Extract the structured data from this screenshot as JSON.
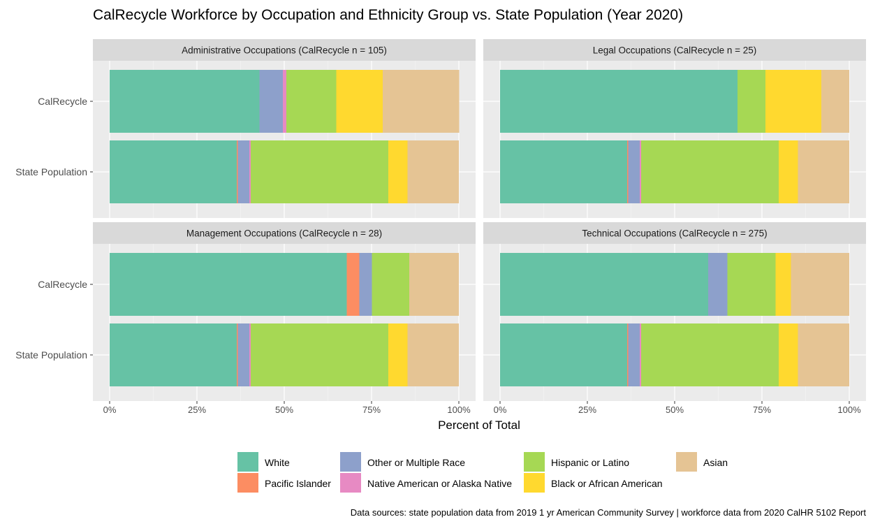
{
  "chart_data": {
    "type": "bar",
    "orientation": "horizontal",
    "stacked": true,
    "title": "CalRecycle Workforce by Occupation and Ethnicity Group vs. State Population (Year 2020)",
    "xlabel": "Percent of Total",
    "xlim": [
      0,
      100
    ],
    "x_ticks": [
      "0%",
      "25%",
      "50%",
      "75%",
      "100%"
    ],
    "x_tick_values": [
      0,
      25,
      50,
      75,
      100
    ],
    "categories": [
      "CalRecycle",
      "State Population"
    ],
    "groups": [
      "White",
      "Pacific Islander",
      "Other or Multiple Race",
      "Native American or Alaska Native",
      "Hispanic or Latino",
      "Black or African American",
      "Asian"
    ],
    "colors": {
      "White": "#66c2a5",
      "Pacific Islander": "#fc8d62",
      "Other or Multiple Race": "#8da0cb",
      "Native American or Alaska Native": "#e78ac3",
      "Hispanic or Latino": "#a6d854",
      "Black or African American": "#ffd92f",
      "Asian": "#e5c494"
    },
    "legend_position": "bottom",
    "grid": true,
    "caption": "Data sources: state population data from 2019 1 yr American Community Survey  |  workforce data from 2020 CalHR 5102 Report",
    "panels": [
      {
        "strip": "Administrative Occupations (CalRecycle n = 105)",
        "bars": [
          {
            "category": "CalRecycle",
            "values": {
              "White": 42.9,
              "Pacific Islander": 0,
              "Other or Multiple Race": 6.7,
              "Native American or Alaska Native": 1.0,
              "Hispanic or Latino": 14.3,
              "Black or African American": 13.3,
              "Asian": 21.9
            }
          },
          {
            "category": "State Population",
            "values": {
              "White": 36.4,
              "Pacific Islander": 0.3,
              "Other or Multiple Race": 3.3,
              "Native American or Alaska Native": 0.4,
              "Hispanic or Latino": 39.4,
              "Black or African American": 5.5,
              "Asian": 14.7
            }
          }
        ]
      },
      {
        "strip": "Legal Occupations (CalRecycle n = 25)",
        "bars": [
          {
            "category": "CalRecycle",
            "values": {
              "White": 68,
              "Pacific Islander": 0,
              "Other or Multiple Race": 0,
              "Native American or Alaska Native": 0,
              "Hispanic or Latino": 8,
              "Black or African American": 16,
              "Asian": 8
            }
          },
          {
            "category": "State Population",
            "values": {
              "White": 36.4,
              "Pacific Islander": 0.3,
              "Other or Multiple Race": 3.3,
              "Native American or Alaska Native": 0.4,
              "Hispanic or Latino": 39.4,
              "Black or African American": 5.5,
              "Asian": 14.7
            }
          }
        ]
      },
      {
        "strip": "Management Occupations (CalRecycle n = 28)",
        "bars": [
          {
            "category": "CalRecycle",
            "values": {
              "White": 67.9,
              "Pacific Islander": 3.6,
              "Other or Multiple Race": 3.6,
              "Native American or Alaska Native": 0,
              "Hispanic or Latino": 10.7,
              "Black or African American": 0,
              "Asian": 14.2
            }
          },
          {
            "category": "State Population",
            "values": {
              "White": 36.4,
              "Pacific Islander": 0.3,
              "Other or Multiple Race": 3.3,
              "Native American or Alaska Native": 0.4,
              "Hispanic or Latino": 39.4,
              "Black or African American": 5.5,
              "Asian": 14.7
            }
          }
        ]
      },
      {
        "strip": "Technical Occupations (CalRecycle n = 275)",
        "bars": [
          {
            "category": "CalRecycle",
            "values": {
              "White": 59.6,
              "Pacific Islander": 0,
              "Other or Multiple Race": 5.5,
              "Native American or Alaska Native": 0,
              "Hispanic or Latino": 13.8,
              "Black or African American": 4.4,
              "Asian": 16.7
            }
          },
          {
            "category": "State Population",
            "values": {
              "White": 36.4,
              "Pacific Islander": 0.3,
              "Other or Multiple Race": 3.3,
              "Native American or Alaska Native": 0.4,
              "Hispanic or Latino": 39.4,
              "Black or African American": 5.5,
              "Asian": 14.7
            }
          }
        ]
      }
    ]
  }
}
